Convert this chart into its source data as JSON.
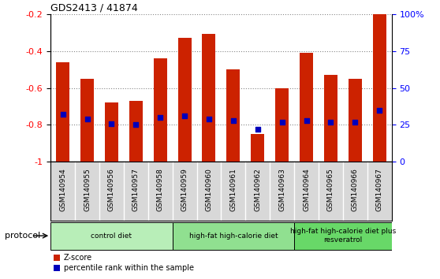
{
  "title": "GDS2413 / 41874",
  "samples": [
    "GSM140954",
    "GSM140955",
    "GSM140956",
    "GSM140957",
    "GSM140958",
    "GSM140959",
    "GSM140960",
    "GSM140961",
    "GSM140962",
    "GSM140963",
    "GSM140964",
    "GSM140965",
    "GSM140966",
    "GSM140967"
  ],
  "zscore": [
    -0.46,
    -0.55,
    -0.68,
    -0.67,
    -0.44,
    -0.33,
    -0.31,
    -0.5,
    -0.85,
    -0.6,
    -0.41,
    -0.53,
    -0.55,
    -0.17
  ],
  "percentile": [
    32,
    29,
    26,
    25,
    30,
    31,
    29,
    28,
    22,
    27,
    28,
    27,
    27,
    35
  ],
  "groups": [
    {
      "label": "control diet",
      "start": 0,
      "end": 4,
      "color": "#b8eeb8"
    },
    {
      "label": "high-fat high-calorie diet",
      "start": 5,
      "end": 9,
      "color": "#90e090"
    },
    {
      "label": "high-fat high-calorie diet plus\nresveratrol",
      "start": 10,
      "end": 13,
      "color": "#68d868"
    }
  ],
  "bar_color": "#cc2200",
  "dot_color": "#0000bb",
  "ylim_left": [
    -1.0,
    -0.2
  ],
  "ylim_right": [
    0,
    100
  ],
  "yticks_left": [
    -1.0,
    -0.8,
    -0.6,
    -0.4,
    -0.2
  ],
  "ytick_labels_left": [
    "-1",
    "-0.8",
    "-0.6",
    "-0.4",
    "-0.2"
  ],
  "yticks_right": [
    0,
    25,
    50,
    75,
    100
  ],
  "ytick_labels_right": [
    "0",
    "25",
    "50",
    "75",
    "100%"
  ],
  "grid_color": "#888888",
  "label_bg_color": "#d8d8d8",
  "protocol_label": "protocol",
  "legend_items": [
    "Z-score",
    "percentile rank within the sample"
  ]
}
